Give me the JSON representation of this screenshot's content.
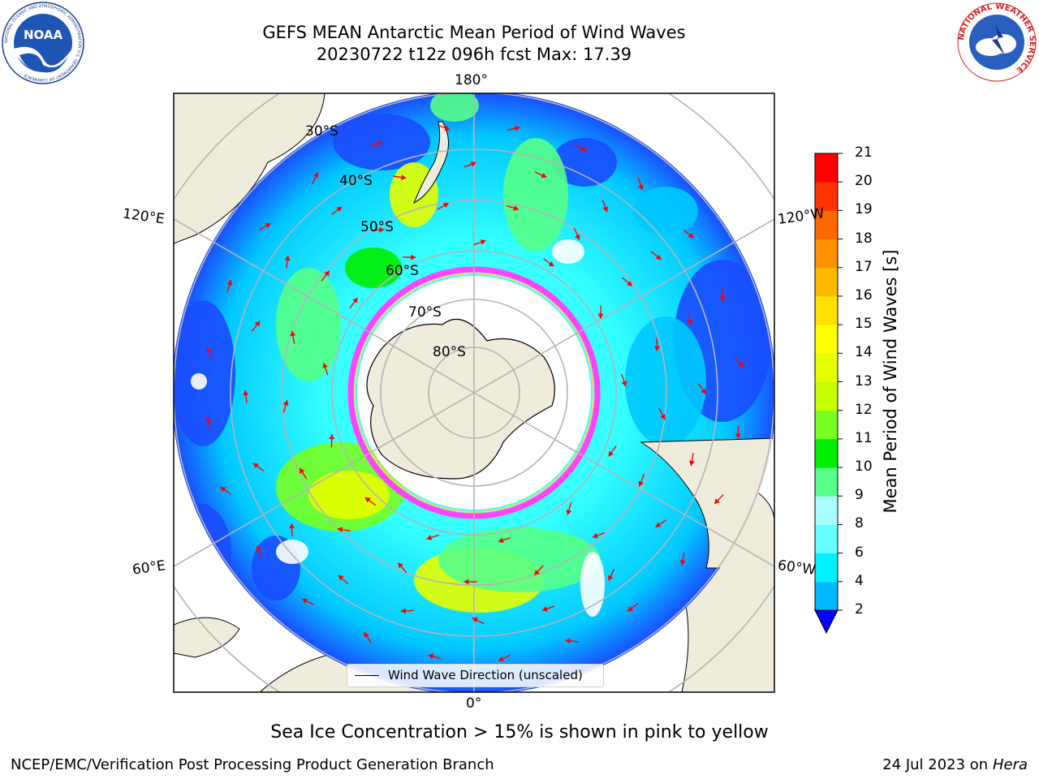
{
  "header": {
    "title_line1": "GEFS MEAN Antarctic Mean Period of Wind Waves",
    "title_line2": "20230722 t12z 096h fcst   Max: 17.39"
  },
  "logos": {
    "left": "NOAA",
    "left_ring_text": "NATIONAL OCEANIC AND ATMOSPHERIC ADMINISTRATION  U.S. DEPARTMENT OF COMMERCE",
    "right_ring_text": "NATIONAL WEATHER SERVICE"
  },
  "map": {
    "projection": "south-polar-stereographic",
    "lon_labels": {
      "top": "180°",
      "bottom": "0°",
      "left_upper": "120°E",
      "left_lower": "60°E",
      "right_upper": "120°W",
      "right_lower": "60°W"
    },
    "lat_labels": [
      "30°S",
      "40°S",
      "50°S",
      "60°S",
      "70°S",
      "80°S"
    ],
    "legend_text": "Wind Wave Direction (unscaled)",
    "arrow_color": "#ff0000",
    "land_color": "#efecdc",
    "ice_colors": [
      "#ff44ff",
      "#ffd36a"
    ]
  },
  "colorbar": {
    "label": "Mean Period of Wind Waves [s]",
    "ticks": [
      "2",
      "4",
      "6",
      "8",
      "9",
      "10",
      "11",
      "12",
      "13",
      "14",
      "15",
      "16",
      "17",
      "18",
      "19",
      "20",
      "21"
    ],
    "colors": [
      "#0040ff",
      "#00b8ff",
      "#00f0ff",
      "#66ffff",
      "#a8ffff",
      "#55ff88",
      "#00ee00",
      "#77ff22",
      "#c8ff00",
      "#e6ff00",
      "#ffff00",
      "#ffe000",
      "#ffbb00",
      "#ff9000",
      "#ff6800",
      "#ff3300",
      "#ff0000"
    ],
    "under_color": "#0000ff"
  },
  "footnote": "Sea Ice Concentration > 15% is shown in pink to yellow",
  "footer": {
    "left": "NCEP/EMC/Verification Post Processing Product Generation Branch",
    "right_date": "24 Jul 2023 on ",
    "right_machine": "Hera"
  }
}
